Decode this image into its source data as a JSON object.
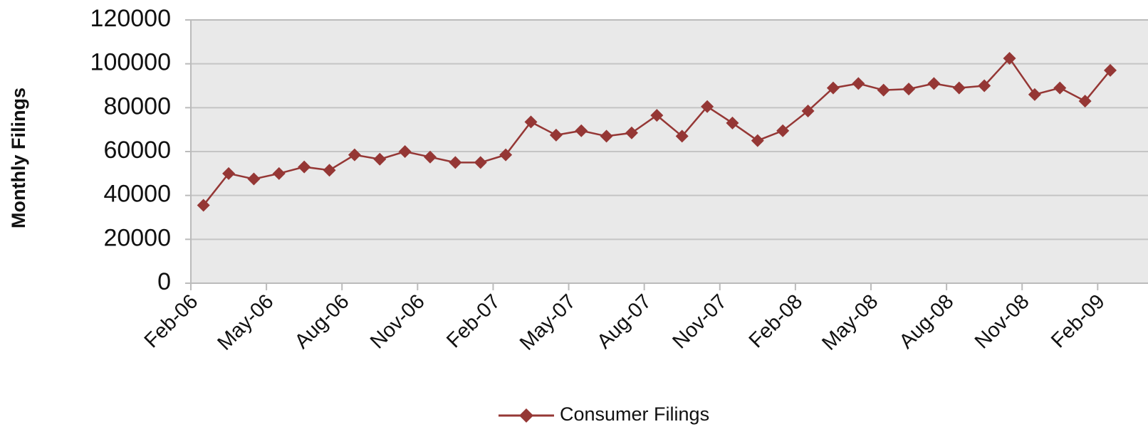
{
  "chart_data": {
    "type": "line",
    "y_label": "Monthly Filings",
    "categories": [
      "Feb-06",
      null,
      null,
      "May-06",
      null,
      null,
      "Aug-06",
      null,
      null,
      "Nov-06",
      null,
      null,
      "Feb-07",
      null,
      null,
      "May-07",
      null,
      null,
      "Aug-07",
      null,
      null,
      "Nov-07",
      null,
      null,
      "Feb-08",
      null,
      null,
      "May-08",
      null,
      null,
      "Aug-08",
      null,
      null,
      "Nov-08",
      null,
      null,
      "Feb-09"
    ],
    "series": [
      {
        "name": "Consumer Filings",
        "color": "#953735",
        "values": [
          35500,
          50000,
          47500,
          50000,
          53000,
          51500,
          58500,
          56500,
          60000,
          57500,
          55000,
          55000,
          58500,
          73500,
          67500,
          69500,
          67000,
          68500,
          76500,
          67000,
          80500,
          73000,
          65000,
          69500,
          78500,
          89000,
          91000,
          88000,
          88500,
          91000,
          89000,
          90000,
          102500,
          86000,
          89000,
          83000,
          97000
        ]
      }
    ],
    "ylim": [
      0,
      120000
    ],
    "yticks": [
      0,
      20000,
      40000,
      60000,
      80000,
      100000,
      120000
    ],
    "grid": true,
    "legend": "bottom"
  }
}
